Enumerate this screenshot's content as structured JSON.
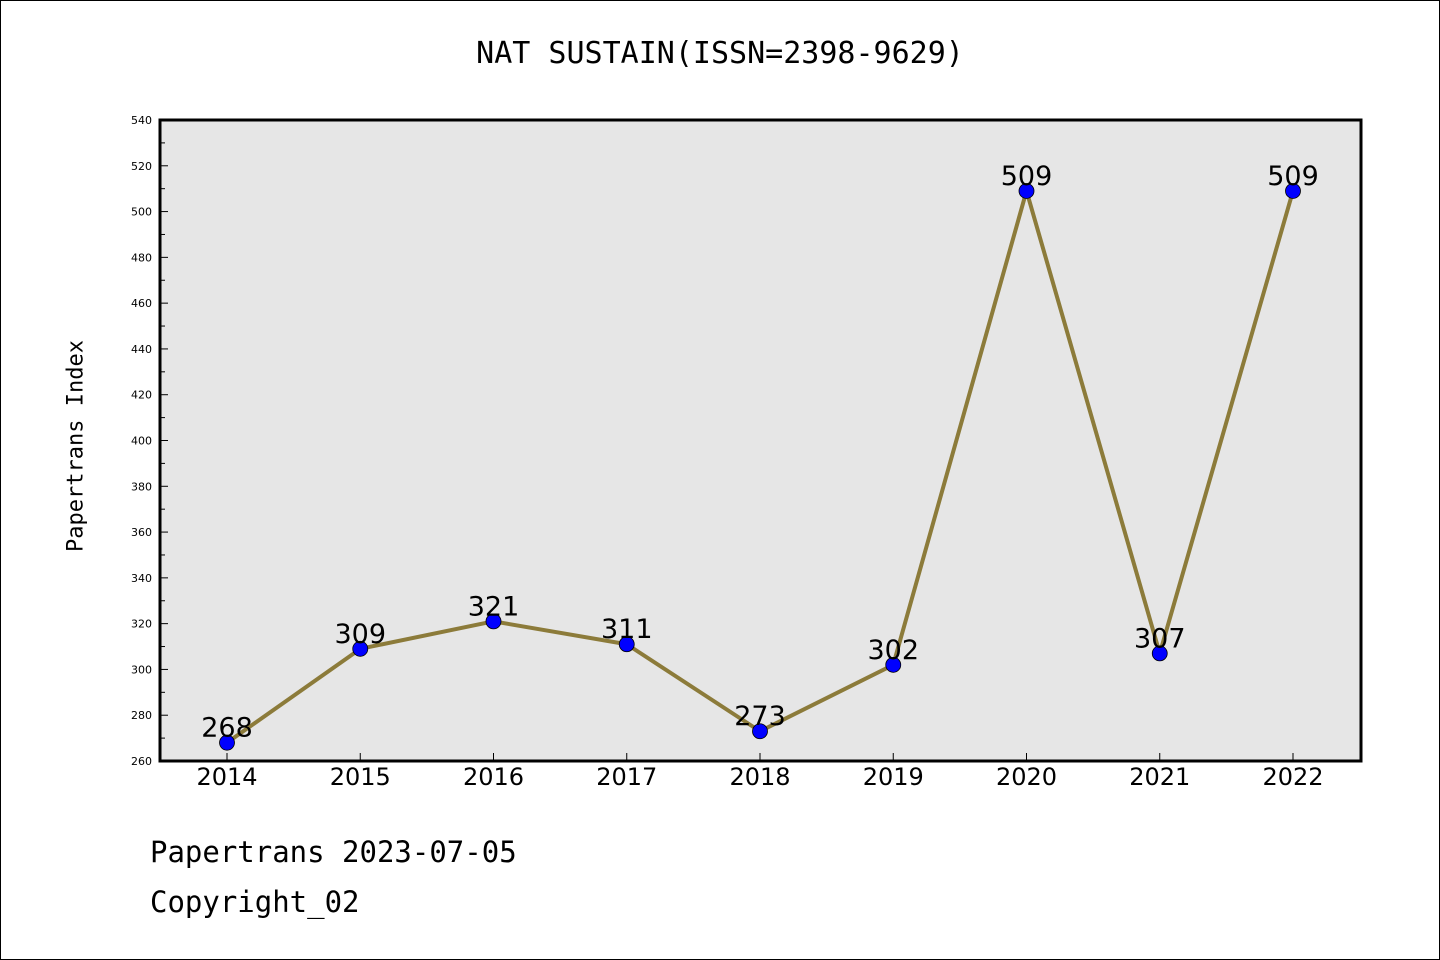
{
  "title": "NAT SUSTAIN(ISSN=2398-9629)",
  "footer": {
    "line1": "Papertrans 2023-07-05",
    "line2": "Copyright_02"
  },
  "colors": {
    "plot_background": "#e6e6e6",
    "line": "#8c7b3a",
    "marker": "#0000ff"
  },
  "chart_data": {
    "type": "line",
    "title": "NAT SUSTAIN(ISSN=2398-9629)",
    "xlabel": "",
    "ylabel": "Papertrans Index",
    "categories": [
      "2014",
      "2015",
      "2016",
      "2017",
      "2018",
      "2019",
      "2020",
      "2021",
      "2022"
    ],
    "series": [
      {
        "values": [
          268,
          309,
          321,
          311,
          273,
          302,
          509,
          307,
          509
        ]
      }
    ],
    "ylim": [
      260,
      540
    ],
    "yticks": [
      260,
      280,
      300,
      320,
      340,
      360,
      380,
      400,
      420,
      440,
      460,
      480,
      500,
      520,
      540
    ],
    "grid": false,
    "legend": "none"
  }
}
